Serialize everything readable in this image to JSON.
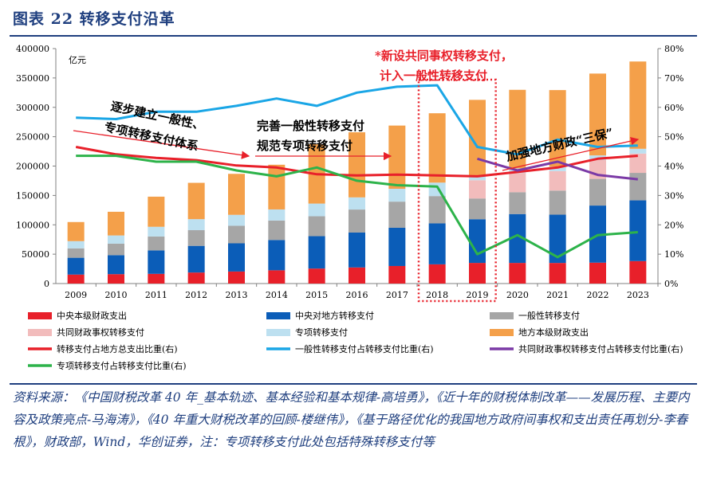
{
  "header": {
    "title": "图表 22    转移支付沿革"
  },
  "chart_data": {
    "type": "bar+line",
    "unit_label": "亿元",
    "categories": [
      "2009",
      "2010",
      "2011",
      "2012",
      "2013",
      "2014",
      "2015",
      "2016",
      "2017",
      "2018",
      "2019",
      "2020",
      "2021",
      "2022",
      "2023"
    ],
    "left_axis": {
      "range": [
        0,
        400000
      ],
      "ticks": [
        "0",
        "50000",
        "100000",
        "150000",
        "200000",
        "250000",
        "300000",
        "350000",
        "400000"
      ]
    },
    "right_axis": {
      "range": [
        0,
        80
      ],
      "ticks": [
        "0%",
        "10%",
        "20%",
        "30%",
        "40%",
        "50%",
        "60%",
        "70%",
        "80%"
      ]
    },
    "bar_series": [
      {
        "name": "中央本级财政支出",
        "color": "#e8202a",
        "values": [
          15300,
          15990,
          16510,
          18760,
          20470,
          22570,
          25540,
          27400,
          29860,
          32710,
          35120,
          35100,
          35050,
          35570,
          38220
        ]
      },
      {
        "name": "中央对地方转移支付",
        "color": "#0b5db8",
        "values": [
          28600,
          32300,
          39900,
          45400,
          48000,
          51600,
          55100,
          59400,
          65100,
          69700,
          74400,
          83200,
          82200,
          97200,
          103400
        ]
      },
      {
        "name": "一般性转移支付",
        "color": "#a6a6a6",
        "values": [
          16000,
          19600,
          23700,
          26700,
          29900,
          33100,
          33900,
          39200,
          44500,
          46500,
          35300,
          37200,
          41000,
          45400,
          46800
        ]
      },
      {
        "name": "共同财政事权转移支付",
        "color": "#f2bcbc",
        "values": [
          0,
          0,
          0,
          0,
          0,
          0,
          0,
          0,
          0,
          0,
          31100,
          32800,
          33100,
          32000,
          32900
        ]
      },
      {
        "name": "专项转移支付",
        "color": "#bde0f0",
        "values": [
          12300,
          14000,
          16500,
          18800,
          18600,
          18900,
          21600,
          20700,
          21900,
          22900,
          7600,
          7800,
          7700,
          8000,
          8100
        ]
      },
      {
        "name": "地方本级财政支出",
        "color": "#f4a04a",
        "values": [
          32500,
          40300,
          51300,
          61800,
          69800,
          76100,
          101000,
          110800,
          107600,
          118100,
          129200,
          133700,
          130300,
          139300,
          148600
        ]
      }
    ],
    "line_series": [
      {
        "name": "转移支付占地方总支出比重(右)",
        "color": "#e8202a",
        "values": [
          46.5,
          44.0,
          42.8,
          42.0,
          40.2,
          39.5,
          37.2,
          36.8,
          37.1,
          36.8,
          36.5,
          38.0,
          39.5,
          42.5,
          43.5
        ]
      },
      {
        "name": "一般性转移支付占转移支付比重(右)",
        "color": "#1aa6e6",
        "values": [
          56.5,
          56.0,
          58.5,
          58.5,
          60.5,
          63.0,
          60.5,
          65.0,
          67.0,
          67.5,
          46.5,
          44.0,
          49.0,
          46.5,
          47.0
        ]
      },
      {
        "name": "共同财政事权转移支付占转移支付比重(右)",
        "color": "#7b3aa6",
        "values": [
          null,
          null,
          null,
          null,
          null,
          null,
          null,
          null,
          null,
          null,
          42.5,
          38.5,
          41.5,
          37.0,
          35.5
        ]
      },
      {
        "name": "专项转移支付占转移支付比重(右)",
        "color": "#2db34a",
        "values": [
          43.5,
          43.5,
          41.5,
          41.5,
          38.5,
          36.5,
          39.5,
          35.0,
          33.5,
          33.0,
          10.0,
          16.5,
          9.0,
          16.5,
          17.5
        ]
      }
    ],
    "highlight": {
      "categories": [
        "2018",
        "2019"
      ],
      "style": "red dotted box"
    },
    "annotations": {
      "note1_line1": "逐步建立一般性、",
      "note1_line2": "专项转移支付体系",
      "note2_line1": "完善一般性转移支付",
      "note2_line2": "规范专项转移支付",
      "note3_line1": "*新设共同事权转移支付，",
      "note3_line2": "计入一般性转移支付",
      "note4": "加强地方财政“三保”"
    }
  },
  "source": {
    "text": "资料来源：《中国财税改革 40 年_基本轨迹、基本经验和基本规律-高培勇》，《近十年的财税体制改革——发展历程、主要内容及政策亮点-马海涛》，《40 年重大财税改革的回顾-楼继伟》，《基于路径优化的我国地方政府间事权和支出责任再划分-李春根》，财政部，Wind，华创证券，注：专项转移支付此处包括特殊转移支付等"
  }
}
